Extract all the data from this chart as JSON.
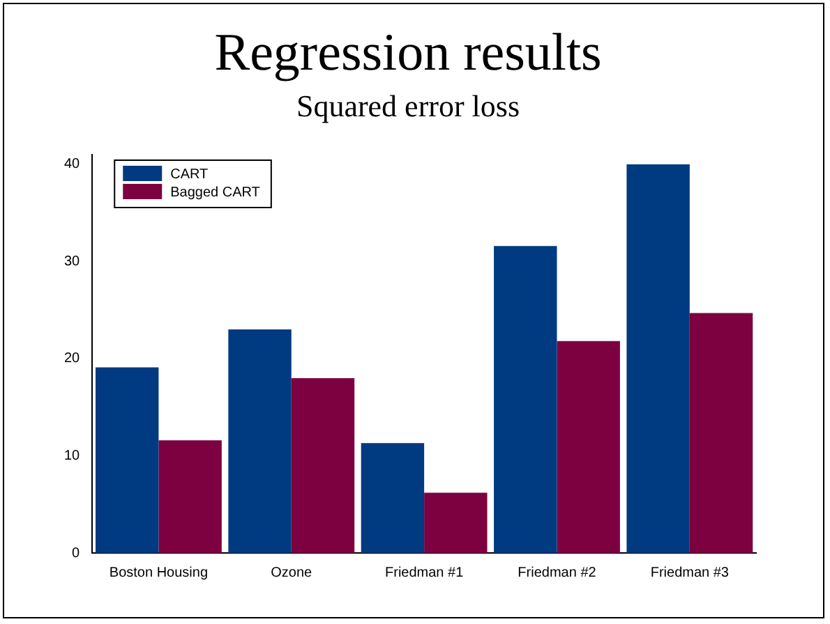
{
  "chart_data": {
    "type": "bar",
    "title": "Regression results",
    "subtitle": "Squared error loss",
    "categories": [
      "Boston Housing",
      "Ozone",
      "Friedman #1",
      "Friedman #2",
      "Friedman #3"
    ],
    "series": [
      {
        "name": "CART",
        "color": "#003a80",
        "values": [
          19.1,
          23.0,
          11.3,
          31.6,
          40.0
        ]
      },
      {
        "name": "Bagged CART",
        "color": "#7d0040",
        "values": [
          11.6,
          18.0,
          6.2,
          21.8,
          24.7
        ]
      }
    ],
    "ylim": [
      0,
      41
    ],
    "yticks": [
      0,
      10,
      20,
      30,
      40
    ],
    "grid": false,
    "legend": "top left"
  }
}
